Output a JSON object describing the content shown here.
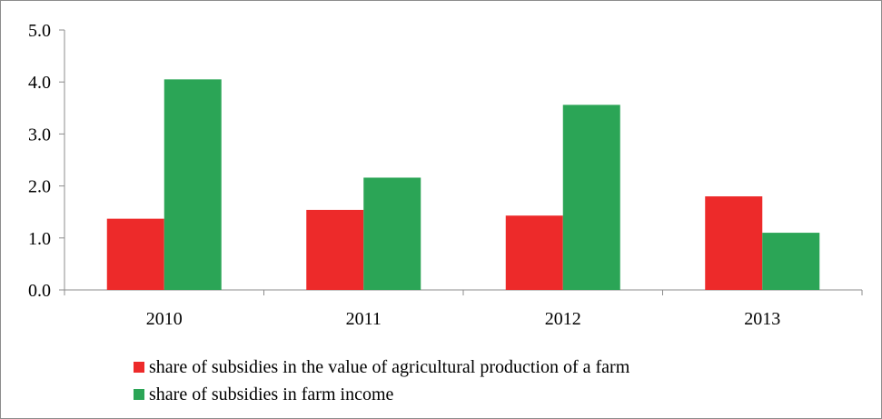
{
  "chart_data": {
    "type": "bar",
    "categories": [
      "2010",
      "2011",
      "2012",
      "2013"
    ],
    "series": [
      {
        "name": "share of subsidies in the value of agricultural production of a farm",
        "color": "#ed2a2a",
        "values": [
          1.37,
          1.54,
          1.43,
          1.8
        ]
      },
      {
        "name": "share of subsidies in farm income",
        "color": "#2ba556",
        "values": [
          4.05,
          2.16,
          3.56,
          1.1
        ]
      }
    ],
    "y_tick_labels": [
      "0.0",
      "1.0",
      "2.0",
      "3.0",
      "4.0",
      "5.0"
    ],
    "ylim": [
      0,
      5
    ],
    "grid": false,
    "legend_position": "bottom-left"
  }
}
